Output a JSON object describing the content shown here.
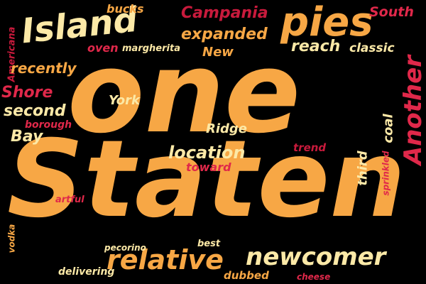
{
  "words": {
    "one": "one",
    "staten": "Staten",
    "island": "Island",
    "pies": "pies",
    "another": "Another",
    "newcomer": "newcomer",
    "relative": "relative",
    "campania": "Campania",
    "south": "South",
    "bucks": "bucks",
    "expanded": "expanded",
    "oven": "oven",
    "margherita": "margherita",
    "new": "New",
    "reach": "reach",
    "classic": "classic",
    "americana": "Americana",
    "recently": "recently",
    "shore": "Shore",
    "york": "York",
    "second": "second",
    "borough": "borough",
    "bay": "Bay",
    "coal": "coal",
    "ridge": "Ridge",
    "location": "location",
    "trend": "trend",
    "toward": "toward",
    "third": "third",
    "sprinkled": "sprinkled",
    "artful": "artful",
    "vodka": "vodka",
    "best": "best",
    "pecorino": "pecorino",
    "delivering": "delivering",
    "dubbed": "dubbed",
    "cheese": "cheese"
  },
  "colors": {
    "background": "#000000",
    "cream": "#fce9a7",
    "orange": "#f7a745",
    "red": "#e0284a",
    "crimson": "#c81a3c"
  }
}
